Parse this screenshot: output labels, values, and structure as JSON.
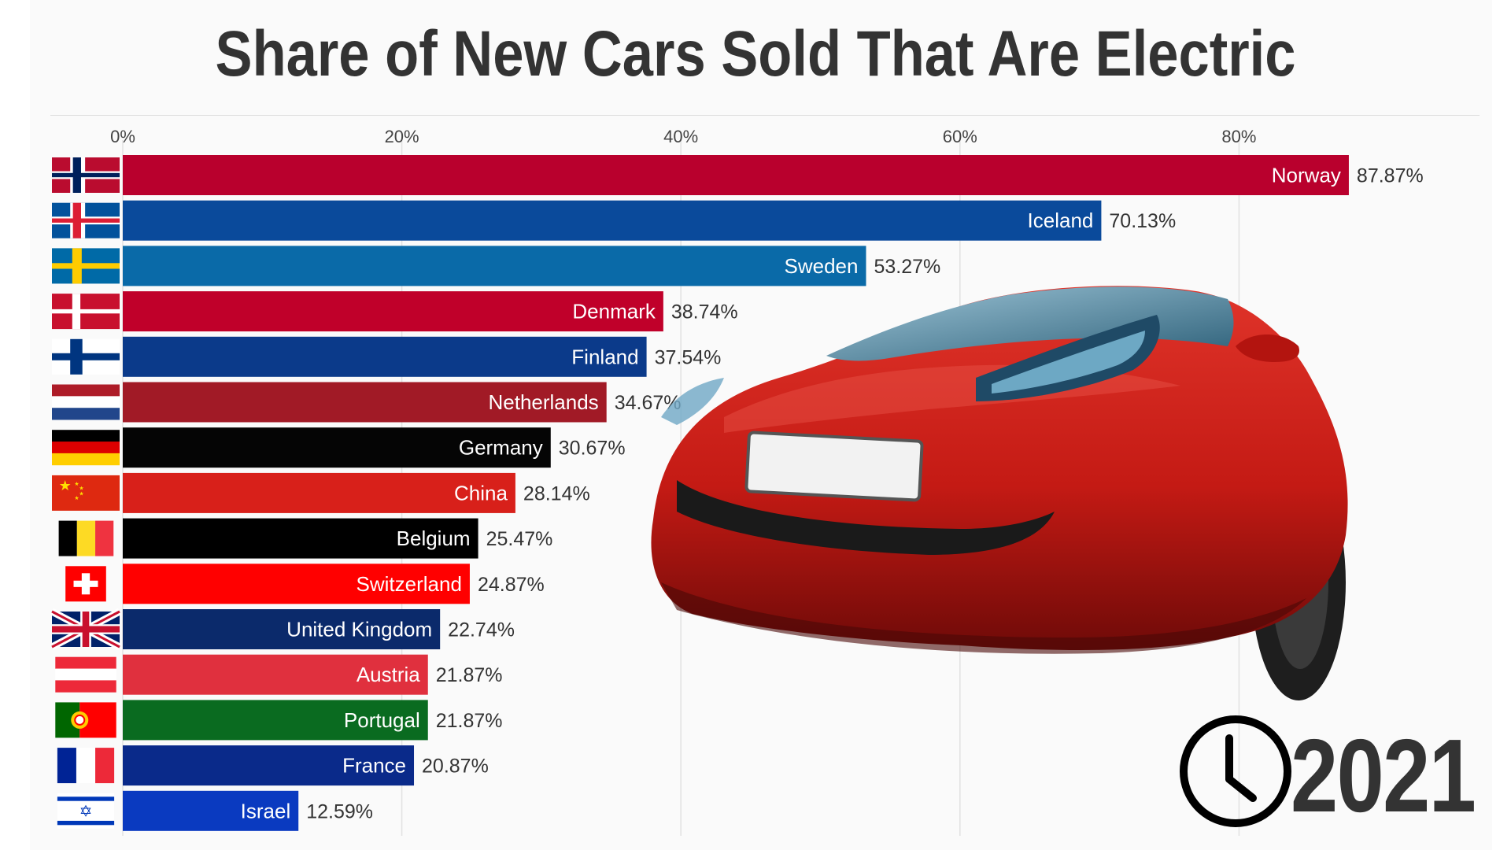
{
  "title": "Share of New Cars Sold That Are Electric",
  "year_label": "2021",
  "clock_icon": "clock-icon",
  "colors": {
    "title": "#333333",
    "grid": "#e2e2e2",
    "tick_text": "#444444"
  },
  "chart_data": {
    "type": "bar",
    "orientation": "horizontal",
    "title": "Share of New Cars Sold That Are Electric",
    "xlim": [
      0,
      100
    ],
    "ticks": [
      0,
      20,
      40,
      60,
      80
    ],
    "tick_labels": [
      "0%",
      "20%",
      "40%",
      "60%",
      "80%"
    ],
    "grid": true,
    "categories": [
      "Norway",
      "Iceland",
      "Sweden",
      "Denmark",
      "Finland",
      "Netherlands",
      "Germany",
      "China",
      "Belgium",
      "Switzerland",
      "United Kingdom",
      "Austria",
      "Portugal",
      "France",
      "Israel"
    ],
    "values": [
      87.87,
      70.13,
      53.27,
      38.74,
      37.54,
      34.67,
      30.67,
      28.14,
      25.47,
      24.87,
      22.74,
      21.87,
      21.87,
      20.87,
      12.59
    ],
    "value_labels": [
      "87.87%",
      "70.13%",
      "53.27%",
      "38.74%",
      "37.54%",
      "34.67%",
      "30.67%",
      "28.14%",
      "25.47%",
      "24.87%",
      "22.74%",
      "21.87%",
      "21.87%",
      "20.87%",
      "12.59%"
    ],
    "bar_colors": [
      "#b9002d",
      "#0a4a9b",
      "#0a6aa8",
      "#c0002a",
      "#0b3a8a",
      "#a11a26",
      "#050505",
      "#d8201a",
      "#000000",
      "#ff0000",
      "#0b2a6b",
      "#e0303e",
      "#0a6b20",
      "#0a2a8a",
      "#0a3ac0"
    ],
    "flags": [
      "norway-flag-icon",
      "iceland-flag-icon",
      "sweden-flag-icon",
      "denmark-flag-icon",
      "finland-flag-icon",
      "netherlands-flag-icon",
      "germany-flag-icon",
      "china-flag-icon",
      "belgium-flag-icon",
      "switzerland-flag-icon",
      "united-kingdom-flag-icon",
      "austria-flag-icon",
      "portugal-flag-icon",
      "france-flag-icon",
      "israel-flag-icon"
    ]
  }
}
